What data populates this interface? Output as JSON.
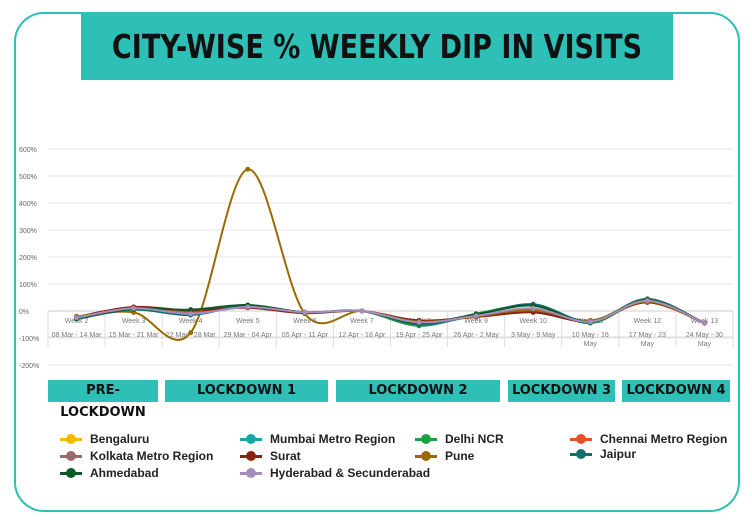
{
  "chart_data": {
    "type": "line",
    "title": "CITY-WISE % WEEKLY DIP IN VISITS",
    "categories": [
      "Week 2",
      "Week 3",
      "Week 4",
      "Week 5",
      "Week 6",
      "Week 7",
      "Week 8",
      "Week 9",
      "Week 10",
      "Week 11",
      "Week 12",
      "Week 13"
    ],
    "date_ranges": [
      [
        "08 Mar - 14 Mar"
      ],
      [
        "15 Mar - 21 Mar"
      ],
      [
        "22 Mar - 28 Mar"
      ],
      [
        "29 Mar - 04 Apr"
      ],
      [
        "05 Apr - 11 Apr"
      ],
      [
        "12 Apr - 18 Apr"
      ],
      [
        "19 Apr - 25 Apr"
      ],
      [
        "26 Apr - 2 May"
      ],
      [
        "3 May - 9 May"
      ],
      [
        "10 May - 16",
        "May"
      ],
      [
        "17 May - 23",
        "May"
      ],
      [
        "24 May - 30",
        "May"
      ]
    ],
    "yticks": [
      "600%",
      "500%",
      "400%",
      "300%",
      "200%",
      "100%",
      "0%",
      "-100%",
      "-200%"
    ],
    "ylim": [
      -200,
      600
    ],
    "grid": true,
    "legend_position": "bottom",
    "series": [
      {
        "name": "Bengaluru",
        "color": "#f5b800",
        "values": [
          -25,
          10,
          -5,
          15,
          -5,
          0,
          -45,
          -20,
          5,
          -40,
          45,
          -45
        ]
      },
      {
        "name": "Mumbai Metro Region",
        "color": "#1aa6a6",
        "values": [
          -25,
          10,
          0,
          20,
          -5,
          0,
          -50,
          -15,
          20,
          -40,
          40,
          -45
        ]
      },
      {
        "name": "Delhi NCR",
        "color": "#1e9e45",
        "values": [
          -25,
          10,
          0,
          20,
          -5,
          0,
          -55,
          -10,
          20,
          -45,
          40,
          -45
        ]
      },
      {
        "name": "Chennai Metro Region",
        "color": "#e8502a",
        "values": [
          -25,
          12,
          -5,
          15,
          -5,
          0,
          -40,
          -20,
          0,
          -40,
          35,
          -45
        ]
      },
      {
        "name": "Kolkata Metro Region",
        "color": "#9c6a6a",
        "values": [
          -25,
          12,
          -10,
          15,
          -5,
          0,
          -40,
          -20,
          0,
          -40,
          35,
          -45
        ]
      },
      {
        "name": "Surat",
        "color": "#8b2210",
        "values": [
          -22,
          15,
          2,
          12,
          -8,
          0,
          -35,
          -22,
          -5,
          -38,
          32,
          -45
        ]
      },
      {
        "name": "Pune",
        "color": "#9a6a00",
        "values": [
          -20,
          -5,
          -80,
          525,
          -10,
          0,
          -40,
          -20,
          5,
          -35,
          35,
          -45
        ]
      },
      {
        "name": "Jaipur",
        "color": "#14706e",
        "values": [
          -30,
          5,
          -15,
          20,
          -5,
          0,
          -50,
          -15,
          25,
          -40,
          45,
          -45
        ]
      },
      {
        "name": "Ahmedabad",
        "color": "#0b5a25",
        "values": [
          -28,
          8,
          5,
          22,
          -5,
          0,
          -45,
          -12,
          20,
          -42,
          40,
          -45
        ]
      },
      {
        "name": "Hyderabad & Secunderabad",
        "color": "#a88cc0",
        "values": [
          -25,
          10,
          -10,
          15,
          -5,
          0,
          -42,
          -18,
          10,
          -40,
          38,
          -45
        ]
      }
    ]
  },
  "phases": [
    "PRE-LOCKDOWN",
    "LOCKDOWN 1",
    "LOCKDOWN 2",
    "LOCKDOWN 3",
    "LOCKDOWN 4"
  ]
}
